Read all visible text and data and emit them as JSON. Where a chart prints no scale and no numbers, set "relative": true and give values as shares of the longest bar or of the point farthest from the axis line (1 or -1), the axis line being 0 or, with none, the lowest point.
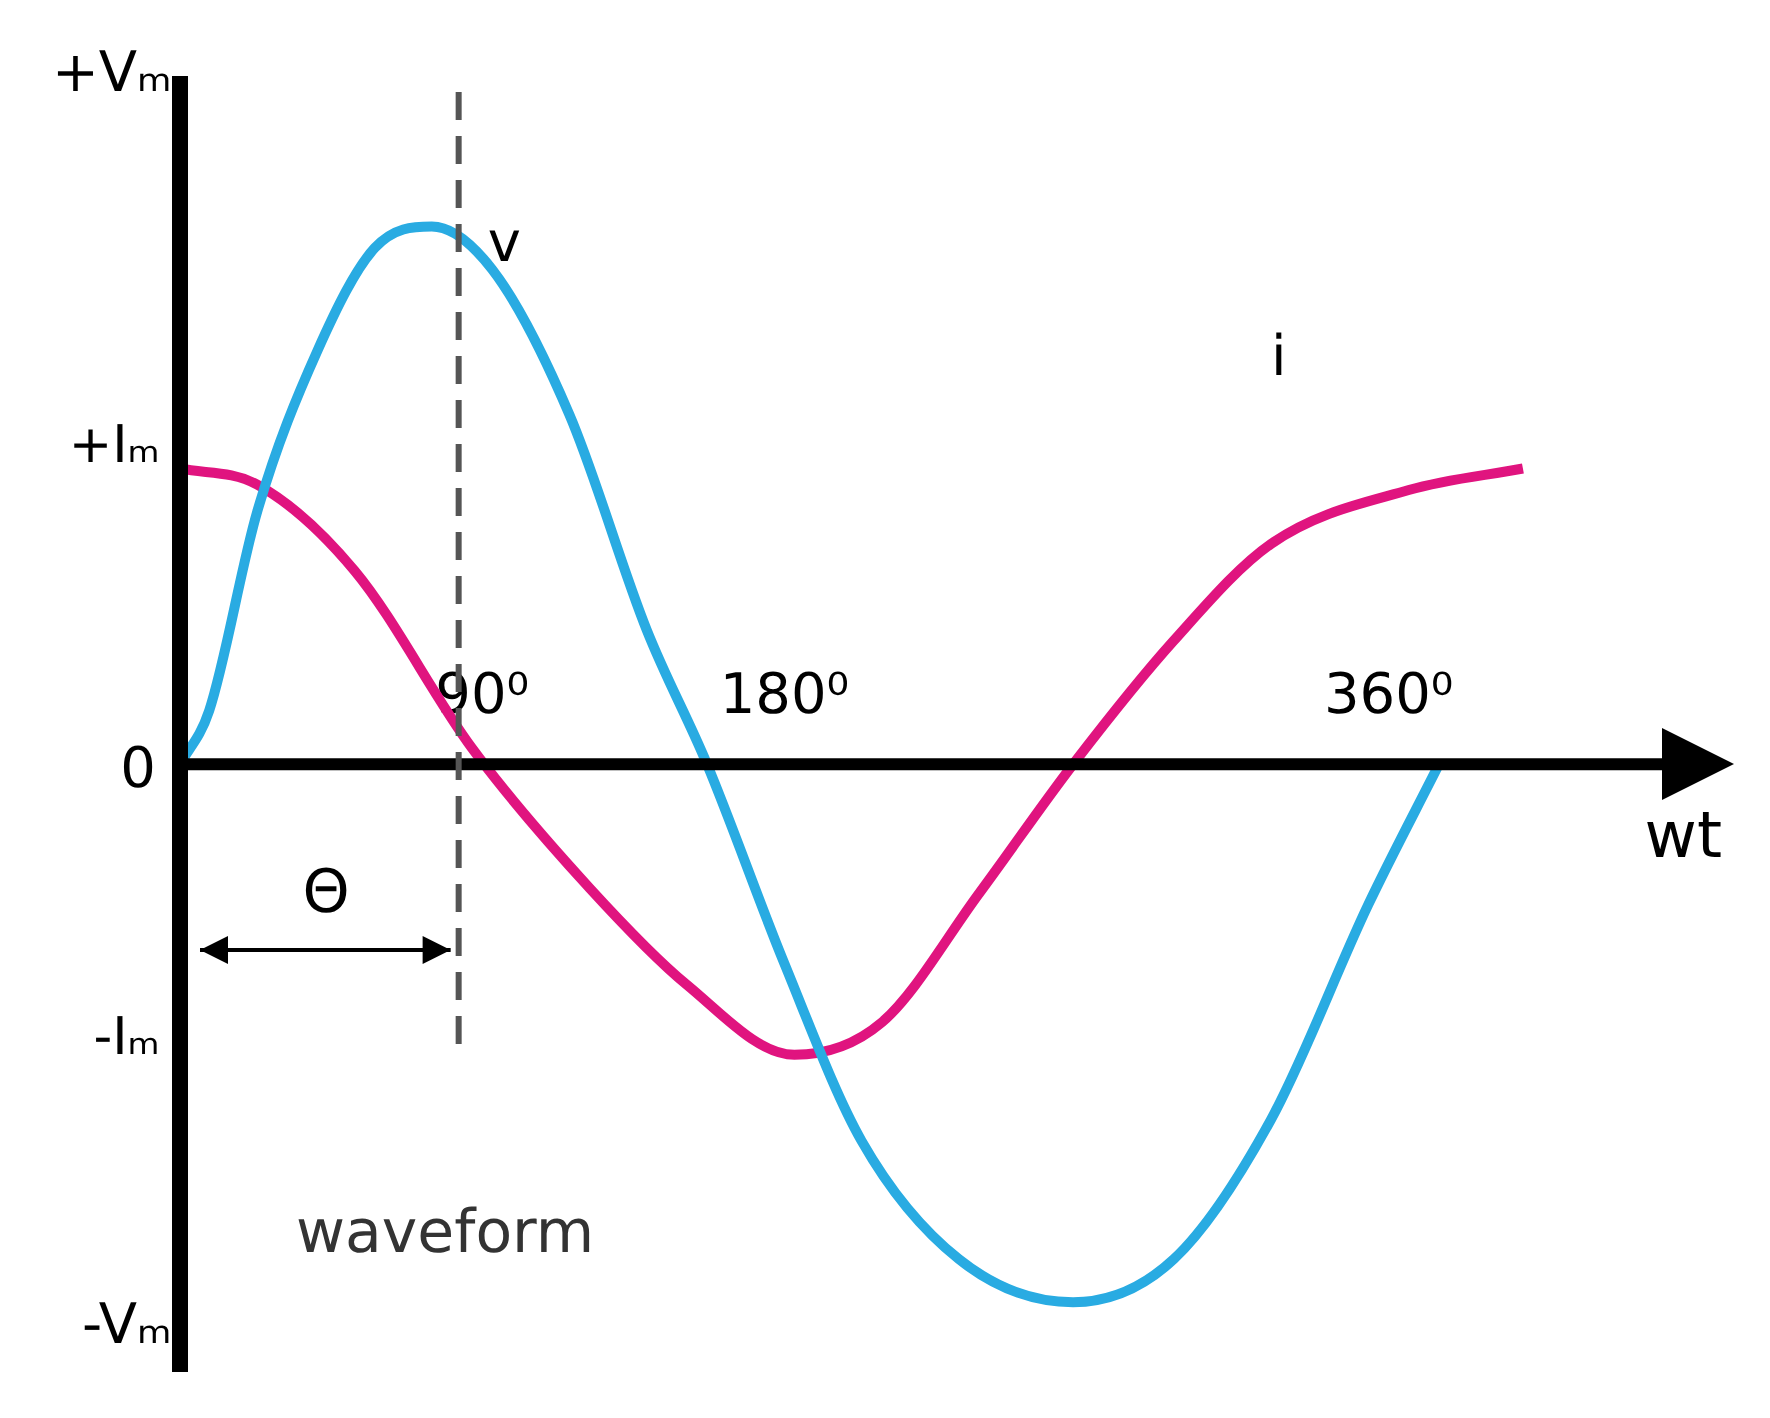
{
  "chart_data": {
    "type": "line",
    "relative": true,
    "xlabel": "wt",
    "xlim": [
      0,
      445
    ],
    "xticks": [
      {
        "value": 90,
        "label": "90⁰"
      },
      {
        "value": 180,
        "label": "180⁰"
      },
      {
        "value": 360,
        "label": "360⁰"
      }
    ],
    "grid": false,
    "legend": false,
    "marker": "none",
    "line_style": "solid",
    "series": [
      {
        "name": "v",
        "color": "#29abe2",
        "x": [
          0,
          8.7,
          23,
          41,
          58,
          75,
          93,
          116,
          139,
          157,
          180,
          203,
          232,
          266,
          296,
          325,
          354,
          375
        ],
        "values": [
          0,
          0.1,
          0.47,
          0.77,
          0.96,
          1.0,
          0.92,
          0.65,
          0.25,
          0,
          -0.37,
          -0.7,
          -0.92,
          -1.0,
          -0.92,
          -0.66,
          -0.26,
          0
        ]
      },
      {
        "name": "i",
        "color": "#e0147f",
        "x": [
          0,
          23,
          52,
          87,
          122,
          151,
          183,
          209,
          238,
          266,
          296,
          325,
          366,
          400
        ],
        "values": [
          0.55,
          0.52,
          0.36,
          0.03,
          -0.23,
          -0.41,
          -0.54,
          -0.48,
          -0.24,
          0,
          0.23,
          0.41,
          0.51,
          0.55
        ]
      }
    ],
    "ref_lines": [
      {
        "axis": "x",
        "value": 83,
        "color": "#555555",
        "line_style": "dashed"
      }
    ],
    "annotations": [
      "+Vₘ",
      "+Iₘ",
      "0",
      "-Iₘ",
      "-Vₘ",
      "Θ",
      "waveform"
    ]
  }
}
